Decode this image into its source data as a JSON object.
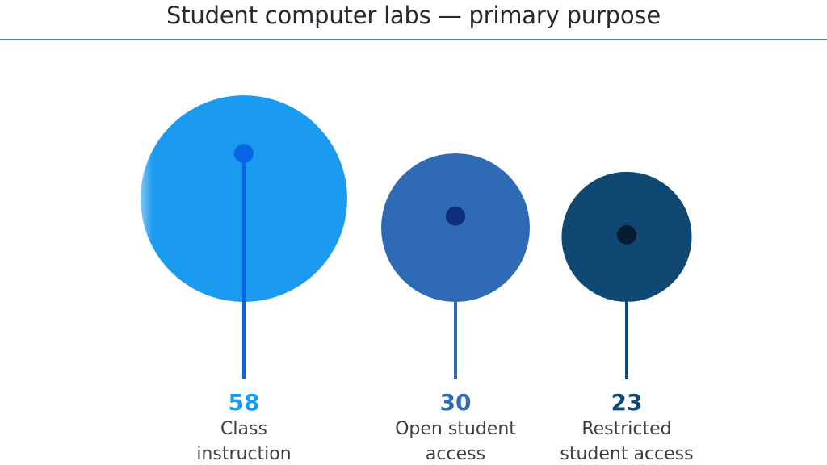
{
  "header": {
    "title": "Student computer labs — primary purpose"
  },
  "colors": {
    "rule": "#3e8f9c",
    "circle_1": "#1b9bf0",
    "dot_1": "#0a64e6",
    "circle_2": "#2f6bb5",
    "dot_2": "#0b2f7a",
    "circle_3": "#0f4873",
    "dot_3": "#071a33"
  },
  "chart_data": {
    "type": "bubble",
    "title": "Student computer labs — primary purpose",
    "categories": [
      [
        "Class",
        "instruction"
      ],
      [
        "Open student",
        "access"
      ],
      [
        "Restricted",
        "student access"
      ]
    ],
    "values": [
      58,
      30,
      23
    ],
    "colors": [
      "#1b9bf0",
      "#2f6bb5",
      "#0f4873"
    ],
    "dot_colors": [
      "#0a64e6",
      "#0b2f7a",
      "#071a33"
    ]
  }
}
